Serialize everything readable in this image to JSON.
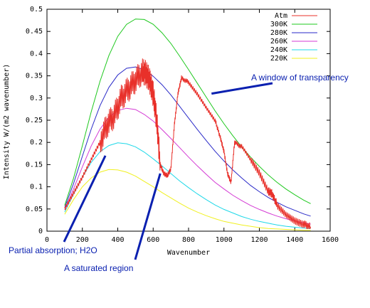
{
  "chart_data": {
    "type": "line",
    "title": "",
    "xlabel": "Wavenumber",
    "ylabel": "Intensity W/(m2 wavenumber)",
    "xlim": [
      0,
      1600
    ],
    "ylim": [
      0,
      0.5
    ],
    "xticks": [
      0,
      200,
      400,
      600,
      800,
      1000,
      1200,
      1400,
      1600
    ],
    "yticks": [
      0,
      0.05,
      0.1,
      0.15,
      0.2,
      0.25,
      0.3,
      0.35,
      0.4,
      0.45,
      0.5
    ],
    "grid": false,
    "legend": "top-right",
    "series": [
      {
        "name": "Atm",
        "color": "#e8302a",
        "x": [
          100,
          150,
          200,
          250,
          300,
          340,
          380,
          420,
          460,
          500,
          540,
          560,
          580,
          600,
          620,
          640,
          660,
          680,
          700,
          720,
          740,
          760,
          800,
          850,
          900,
          950,
          980,
          1000,
          1020,
          1040,
          1060,
          1100,
          1150,
          1200,
          1250,
          1270,
          1300,
          1350,
          1400,
          1450,
          1490
        ],
        "y": [
          0.05,
          0.085,
          0.12,
          0.16,
          0.2,
          0.24,
          0.26,
          0.3,
          0.32,
          0.34,
          0.36,
          0.355,
          0.34,
          0.31,
          0.25,
          0.15,
          0.13,
          0.125,
          0.14,
          0.24,
          0.31,
          0.345,
          0.335,
          0.31,
          0.28,
          0.25,
          0.21,
          0.18,
          0.13,
          0.11,
          0.2,
          0.19,
          0.16,
          0.13,
          0.09,
          0.085,
          0.06,
          0.04,
          0.025,
          0.015,
          0.01
        ]
      },
      {
        "name": "300K",
        "color": "#1ec81e",
        "x": [
          100,
          150,
          200,
          250,
          300,
          350,
          400,
          450,
          500,
          550,
          600,
          650,
          700,
          750,
          800,
          850,
          900,
          950,
          1000,
          1050,
          1100,
          1150,
          1200,
          1250,
          1300,
          1350,
          1400,
          1450,
          1490
        ],
        "y": [
          0.058,
          0.119,
          0.193,
          0.269,
          0.338,
          0.396,
          0.439,
          0.466,
          0.478,
          0.477,
          0.466,
          0.447,
          0.423,
          0.394,
          0.364,
          0.333,
          0.302,
          0.271,
          0.242,
          0.215,
          0.19,
          0.167,
          0.146,
          0.127,
          0.11,
          0.095,
          0.082,
          0.07,
          0.062
        ]
      },
      {
        "name": "280K",
        "color": "#2a2ac8",
        "x": [
          100,
          150,
          200,
          250,
          300,
          350,
          400,
          450,
          500,
          550,
          600,
          650,
          700,
          750,
          800,
          850,
          900,
          950,
          1000,
          1050,
          1100,
          1150,
          1200,
          1250,
          1300,
          1350,
          1400,
          1450,
          1490
        ],
        "y": [
          0.053,
          0.107,
          0.169,
          0.23,
          0.283,
          0.324,
          0.352,
          0.367,
          0.37,
          0.364,
          0.349,
          0.33,
          0.307,
          0.281,
          0.255,
          0.229,
          0.204,
          0.18,
          0.158,
          0.138,
          0.12,
          0.103,
          0.089,
          0.076,
          0.065,
          0.055,
          0.047,
          0.039,
          0.034
        ]
      },
      {
        "name": "260K",
        "color": "#d43ad4",
        "x": [
          100,
          150,
          200,
          250,
          300,
          350,
          400,
          450,
          500,
          550,
          600,
          650,
          700,
          750,
          800,
          850,
          900,
          950,
          1000,
          1050,
          1100,
          1150,
          1200,
          1250,
          1300,
          1350,
          1400,
          1450,
          1490
        ],
        "y": [
          0.048,
          0.095,
          0.145,
          0.192,
          0.23,
          0.257,
          0.272,
          0.277,
          0.274,
          0.263,
          0.248,
          0.229,
          0.209,
          0.188,
          0.167,
          0.147,
          0.128,
          0.11,
          0.095,
          0.081,
          0.069,
          0.058,
          0.049,
          0.041,
          0.034,
          0.028,
          0.023,
          0.019,
          0.016
        ]
      },
      {
        "name": "240K",
        "color": "#1ed8e8",
        "x": [
          100,
          150,
          200,
          250,
          300,
          350,
          400,
          450,
          500,
          550,
          600,
          650,
          700,
          750,
          800,
          850,
          900,
          950,
          1000,
          1050,
          1100,
          1150,
          1200,
          1250,
          1300,
          1350,
          1400,
          1450,
          1490
        ],
        "y": [
          0.043,
          0.083,
          0.122,
          0.155,
          0.179,
          0.193,
          0.199,
          0.197,
          0.19,
          0.178,
          0.163,
          0.147,
          0.13,
          0.113,
          0.098,
          0.084,
          0.071,
          0.059,
          0.049,
          0.041,
          0.033,
          0.027,
          0.022,
          0.018,
          0.014,
          0.011,
          0.009,
          0.007,
          0.006
        ]
      },
      {
        "name": "220K",
        "color": "#f0f020",
        "x": [
          100,
          150,
          200,
          250,
          300,
          350,
          400,
          450,
          500,
          550,
          600,
          650,
          700,
          750,
          800,
          850,
          900,
          950,
          1000,
          1050,
          1100,
          1150,
          1200,
          1250,
          1300,
          1350,
          1400,
          1450,
          1490
        ],
        "y": [
          0.038,
          0.071,
          0.1,
          0.12,
          0.133,
          0.139,
          0.138,
          0.133,
          0.124,
          0.112,
          0.1,
          0.087,
          0.075,
          0.063,
          0.052,
          0.043,
          0.035,
          0.028,
          0.022,
          0.018,
          0.014,
          0.011,
          0.008,
          0.006,
          0.005,
          0.004,
          0.003,
          0.002,
          0.002
        ]
      }
    ],
    "annotations": [
      {
        "text": "A window of transparency",
        "arrow_to": [
          930,
          0.31
        ]
      },
      {
        "text": "Partial absorption; H2O",
        "arrow_to": [
          330,
          0.17
        ]
      },
      {
        "text": "A saturated region",
        "arrow_to": [
          640,
          0.13
        ]
      }
    ]
  }
}
